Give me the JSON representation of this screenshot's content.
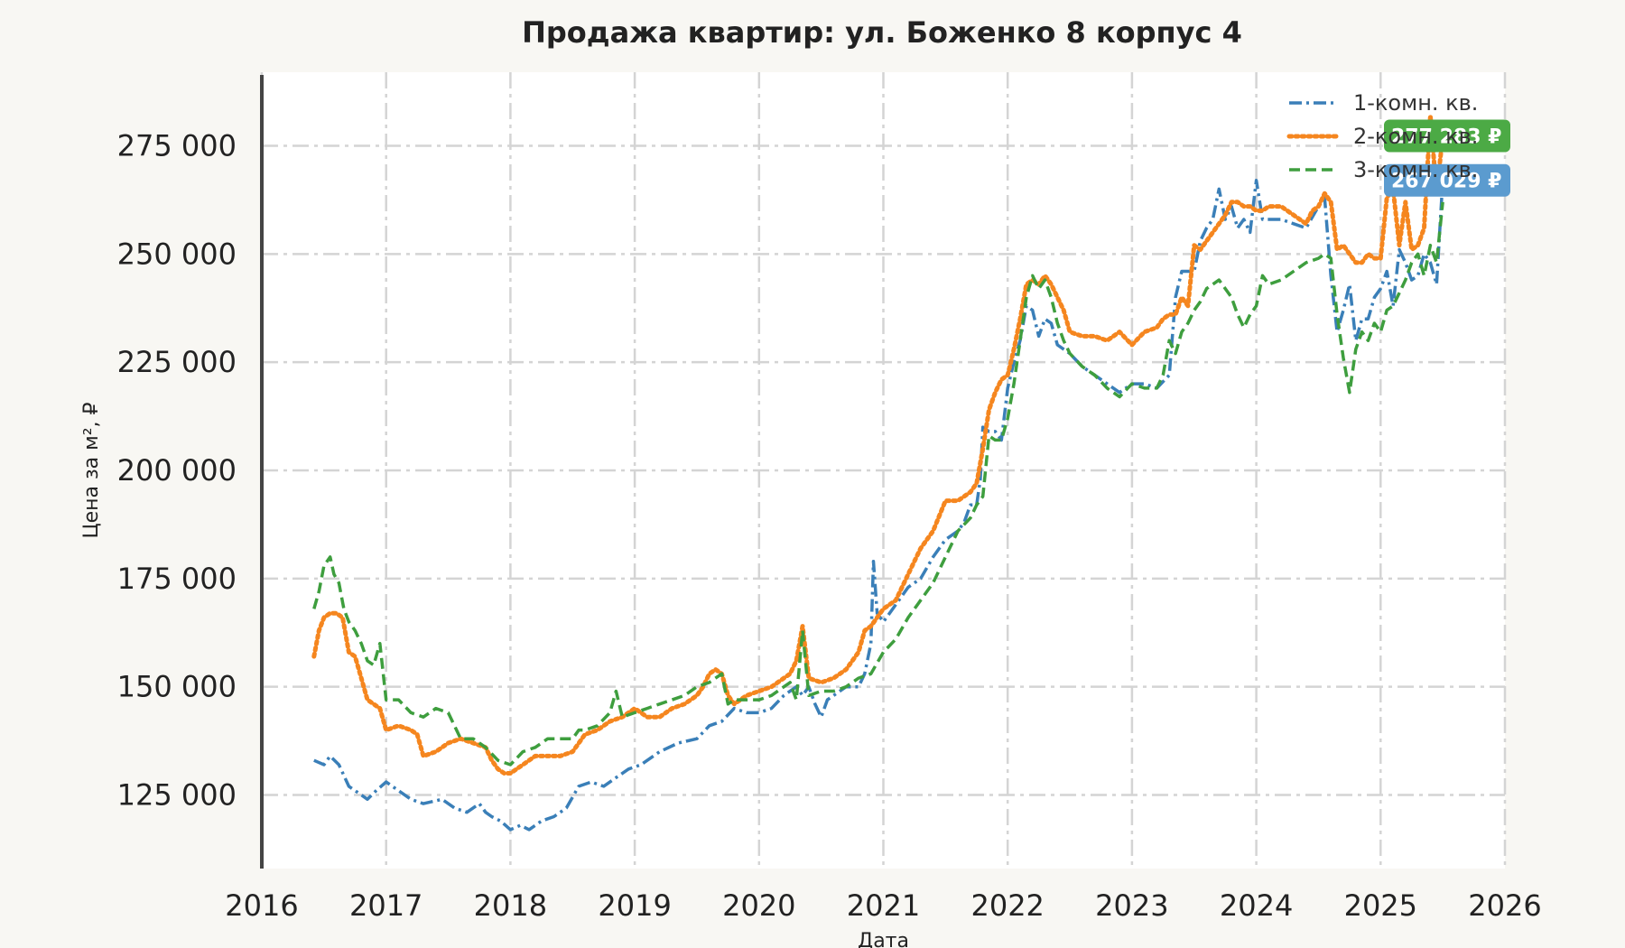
{
  "chart_data": {
    "type": "line",
    "title": "Продажа квартир: ул. Боженко 8 корпус 4",
    "xlabel": "Дата",
    "ylabel": "Цена за м², ₽",
    "xlim": [
      2016.0,
      2026.0
    ],
    "ylim": [
      108000,
      292000
    ],
    "x_ticks": [
      2016,
      2017,
      2018,
      2019,
      2020,
      2021,
      2022,
      2023,
      2024,
      2025,
      2026
    ],
    "x_tick_labels": [
      "2016",
      "2017",
      "2018",
      "2019",
      "2020",
      "2021",
      "2022",
      "2023",
      "2024",
      "2025",
      "2026"
    ],
    "y_ticks": [
      125000,
      150000,
      175000,
      200000,
      225000,
      250000,
      275000
    ],
    "y_tick_labels": [
      "125 000",
      "150 000",
      "175 000",
      "200 000",
      "225 000",
      "250 000",
      "275 000"
    ],
    "grid": true,
    "legend_position": "top-right",
    "series": [
      {
        "name": "1-комн. кв.",
        "color": "#3a7fb8",
        "dash": "dashdot",
        "x": [
          2016.42,
          2016.5,
          2016.55,
          2016.62,
          2016.7,
          2016.75,
          2016.85,
          2016.92,
          2017.0,
          2017.1,
          2017.2,
          2017.3,
          2017.45,
          2017.55,
          2017.65,
          2017.75,
          2017.8,
          2017.85,
          2017.92,
          2018.0,
          2018.08,
          2018.15,
          2018.25,
          2018.35,
          2018.45,
          2018.55,
          2018.65,
          2018.75,
          2018.85,
          2018.95,
          2019.05,
          2019.2,
          2019.35,
          2019.5,
          2019.6,
          2019.7,
          2019.8,
          2019.9,
          2020.0,
          2020.1,
          2020.2,
          2020.3,
          2020.35,
          2020.4,
          2020.45,
          2020.5,
          2020.55,
          2020.6,
          2020.7,
          2020.8,
          2020.85,
          2020.9,
          2020.92,
          2020.95,
          2021.0,
          2021.1,
          2021.2,
          2021.3,
          2021.4,
          2021.5,
          2021.6,
          2021.65,
          2021.7,
          2021.75,
          2021.78,
          2021.8,
          2021.85,
          2021.9,
          2021.95,
          2022.0,
          2022.05,
          2022.1,
          2022.15,
          2022.2,
          2022.25,
          2022.3,
          2022.35,
          2022.4,
          2022.5,
          2022.6,
          2022.7,
          2022.8,
          2022.9,
          2023.0,
          2023.1,
          2023.2,
          2023.3,
          2023.35,
          2023.4,
          2023.45,
          2023.5,
          2023.55,
          2023.6,
          2023.65,
          2023.7,
          2023.75,
          2023.8,
          2023.85,
          2023.9,
          2023.95,
          2024.0,
          2024.05,
          2024.1,
          2024.2,
          2024.3,
          2024.4,
          2024.5,
          2024.55,
          2024.6,
          2024.65,
          2024.7,
          2024.75,
          2024.8,
          2024.85,
          2024.9,
          2024.95,
          2025.0,
          2025.05,
          2025.1,
          2025.15,
          2025.2,
          2025.25,
          2025.3,
          2025.35,
          2025.4,
          2025.45,
          2025.5
        ],
        "y": [
          133000,
          132000,
          134000,
          132000,
          127000,
          126000,
          124000,
          126000,
          128000,
          126000,
          124000,
          123000,
          124000,
          122000,
          121000,
          123000,
          121000,
          120000,
          119000,
          117000,
          118000,
          117000,
          119000,
          120000,
          122000,
          127000,
          128000,
          127000,
          129000,
          131000,
          132000,
          135000,
          137000,
          138000,
          141000,
          142000,
          145000,
          144000,
          144000,
          145000,
          148000,
          150000,
          148000,
          150000,
          146000,
          143000,
          147000,
          148000,
          150000,
          150000,
          153000,
          160000,
          179000,
          167000,
          165000,
          169000,
          173000,
          175000,
          180000,
          184000,
          186000,
          188000,
          192000,
          192000,
          198000,
          210000,
          209000,
          209000,
          207000,
          219000,
          225000,
          230000,
          238000,
          237000,
          231000,
          235000,
          234000,
          229000,
          227000,
          224000,
          222000,
          220000,
          218000,
          220000,
          220000,
          219000,
          222000,
          240000,
          246000,
          246000,
          246000,
          253000,
          256000,
          258000,
          265000,
          258000,
          261000,
          256000,
          258000,
          255000,
          267000,
          258000,
          258000,
          258000,
          257000,
          256000,
          261000,
          263000,
          245000,
          232000,
          237000,
          243000,
          230000,
          235000,
          235000,
          240000,
          242000,
          246000,
          238000,
          251000,
          248000,
          244000,
          245000,
          250000,
          248000,
          243000,
          267029
        ]
      },
      {
        "name": "2-комн. кв.",
        "color": "#f5861f",
        "dash": "dotted",
        "x": [
          2016.42,
          2016.46,
          2016.5,
          2016.55,
          2016.6,
          2016.65,
          2016.7,
          2016.75,
          2016.8,
          2016.85,
          2016.9,
          2016.95,
          2017.0,
          2017.1,
          2017.2,
          2017.25,
          2017.3,
          2017.4,
          2017.5,
          2017.6,
          2017.7,
          2017.8,
          2017.85,
          2017.9,
          2017.95,
          2018.0,
          2018.1,
          2018.2,
          2018.3,
          2018.4,
          2018.5,
          2018.6,
          2018.7,
          2018.8,
          2018.9,
          2019.0,
          2019.1,
          2019.2,
          2019.3,
          2019.4,
          2019.5,
          2019.55,
          2019.6,
          2019.65,
          2019.7,
          2019.75,
          2019.8,
          2019.9,
          2020.0,
          2020.1,
          2020.2,
          2020.25,
          2020.3,
          2020.35,
          2020.4,
          2020.5,
          2020.6,
          2020.7,
          2020.8,
          2020.85,
          2020.9,
          2021.0,
          2021.1,
          2021.2,
          2021.3,
          2021.4,
          2021.5,
          2021.6,
          2021.65,
          2021.7,
          2021.75,
          2021.8,
          2021.85,
          2021.9,
          2021.95,
          2022.0,
          2022.05,
          2022.1,
          2022.15,
          2022.2,
          2022.25,
          2022.3,
          2022.35,
          2022.4,
          2022.45,
          2022.5,
          2022.6,
          2022.7,
          2022.8,
          2022.9,
          2023.0,
          2023.1,
          2023.2,
          2023.25,
          2023.3,
          2023.35,
          2023.4,
          2023.45,
          2023.5,
          2023.55,
          2023.6,
          2023.65,
          2023.7,
          2023.75,
          2023.8,
          2023.85,
          2023.9,
          2023.95,
          2024.0,
          2024.05,
          2024.1,
          2024.2,
          2024.3,
          2024.4,
          2024.45,
          2024.5,
          2024.55,
          2024.6,
          2024.65,
          2024.7,
          2024.75,
          2024.8,
          2024.85,
          2024.9,
          2024.95,
          2025.0,
          2025.05,
          2025.1,
          2025.15,
          2025.2,
          2025.25,
          2025.3,
          2025.35,
          2025.4,
          2025.45,
          2025.5
        ],
        "y": [
          157000,
          163000,
          166000,
          167000,
          167000,
          166000,
          158000,
          157000,
          152000,
          147000,
          146000,
          145000,
          140000,
          141000,
          140000,
          139000,
          134000,
          135000,
          137000,
          138000,
          137000,
          136000,
          133000,
          131000,
          130000,
          130000,
          132000,
          134000,
          134000,
          134000,
          135000,
          139000,
          140000,
          142000,
          143000,
          145000,
          143000,
          143000,
          145000,
          146000,
          148000,
          150000,
          153000,
          154000,
          153000,
          148000,
          146000,
          148000,
          149000,
          150000,
          152000,
          153000,
          156000,
          164000,
          152000,
          151000,
          152000,
          154000,
          158000,
          163000,
          164000,
          168000,
          170000,
          176000,
          182000,
          186000,
          193000,
          193000,
          194000,
          195000,
          197000,
          205000,
          214000,
          218000,
          221000,
          222000,
          228000,
          235000,
          243000,
          244000,
          243000,
          245000,
          243000,
          240000,
          237000,
          232000,
          231000,
          231000,
          230000,
          232000,
          229000,
          232000,
          233000,
          235000,
          236000,
          236000,
          240000,
          238000,
          252000,
          251000,
          253000,
          255000,
          257000,
          259000,
          262000,
          262000,
          261000,
          261000,
          260000,
          260000,
          261000,
          261000,
          259000,
          257000,
          260000,
          261000,
          264000,
          262000,
          251000,
          252000,
          250000,
          248000,
          248000,
          250000,
          249000,
          249000,
          263000,
          265000,
          252000,
          262000,
          251000,
          252000,
          256000,
          282000,
          264000,
          277283
        ]
      },
      {
        "name": "3-комн. кв.",
        "color": "#3e9e3e",
        "dash": "dashed",
        "x": [
          2016.42,
          2016.46,
          2016.5,
          2016.55,
          2016.58,
          2016.62,
          2016.66,
          2016.7,
          2016.75,
          2016.8,
          2016.85,
          2016.9,
          2016.95,
          2017.0,
          2017.1,
          2017.2,
          2017.3,
          2017.4,
          2017.5,
          2017.6,
          2017.7,
          2017.8,
          2017.9,
          2018.0,
          2018.1,
          2018.2,
          2018.3,
          2018.4,
          2018.5,
          2018.55,
          2018.6,
          2018.7,
          2018.8,
          2018.85,
          2018.9,
          2019.0,
          2019.1,
          2019.2,
          2019.3,
          2019.4,
          2019.5,
          2019.6,
          2019.7,
          2019.75,
          2019.8,
          2019.9,
          2020.0,
          2020.1,
          2020.2,
          2020.25,
          2020.3,
          2020.35,
          2020.4,
          2020.5,
          2020.6,
          2020.7,
          2020.8,
          2020.9,
          2021.0,
          2021.1,
          2021.2,
          2021.3,
          2021.4,
          2021.5,
          2021.6,
          2021.7,
          2021.75,
          2021.8,
          2021.85,
          2021.9,
          2021.95,
          2022.0,
          2022.05,
          2022.1,
          2022.15,
          2022.2,
          2022.25,
          2022.3,
          2022.35,
          2022.4,
          2022.45,
          2022.5,
          2022.6,
          2022.7,
          2022.8,
          2022.9,
          2023.0,
          2023.1,
          2023.2,
          2023.25,
          2023.3,
          2023.35,
          2023.4,
          2023.45,
          2023.5,
          2023.55,
          2023.6,
          2023.7,
          2023.8,
          2023.85,
          2023.9,
          2023.95,
          2024.0,
          2024.05,
          2024.1,
          2024.2,
          2024.3,
          2024.4,
          2024.5,
          2024.55,
          2024.6,
          2024.65,
          2024.7,
          2024.75,
          2024.8,
          2024.85,
          2024.9,
          2024.95,
          2025.0,
          2025.05,
          2025.1,
          2025.15,
          2025.2,
          2025.25,
          2025.3,
          2025.35,
          2025.4,
          2025.45,
          2025.5
        ],
        "y": [
          168000,
          172000,
          178000,
          180000,
          176000,
          174000,
          168000,
          165000,
          163000,
          160000,
          156000,
          155000,
          160000,
          147000,
          147000,
          144000,
          143000,
          145000,
          144000,
          138000,
          138000,
          136000,
          133000,
          132000,
          135000,
          136000,
          138000,
          138000,
          138000,
          140000,
          140000,
          141000,
          144000,
          149000,
          143000,
          144000,
          145000,
          146000,
          147000,
          148000,
          150000,
          151000,
          153000,
          146000,
          147000,
          147000,
          147000,
          148000,
          150000,
          151000,
          147000,
          163000,
          148000,
          149000,
          149000,
          150000,
          152000,
          153000,
          158000,
          161000,
          166000,
          170000,
          174000,
          180000,
          186000,
          189000,
          192000,
          194000,
          208000,
          207000,
          207000,
          212000,
          220000,
          230000,
          240000,
          245000,
          242000,
          244000,
          240000,
          234000,
          230000,
          227000,
          224000,
          222000,
          219000,
          217000,
          220000,
          219000,
          219000,
          222000,
          230000,
          227000,
          232000,
          234000,
          237000,
          239000,
          242000,
          244000,
          240000,
          236000,
          233000,
          236000,
          238000,
          245000,
          243000,
          244000,
          246000,
          248000,
          249000,
          250000,
          249000,
          236000,
          226000,
          218000,
          228000,
          232000,
          230000,
          234000,
          232000,
          237000,
          238000,
          241000,
          244000,
          248000,
          250000,
          245000,
          252000,
          248000,
          262000
        ]
      }
    ],
    "annotations": [
      {
        "text": "277 283 ₽",
        "value": 277283,
        "color": "#4caa45"
      },
      {
        "text": "267 029 ₽",
        "value": 267029,
        "color": "#5b9bcf"
      }
    ]
  }
}
